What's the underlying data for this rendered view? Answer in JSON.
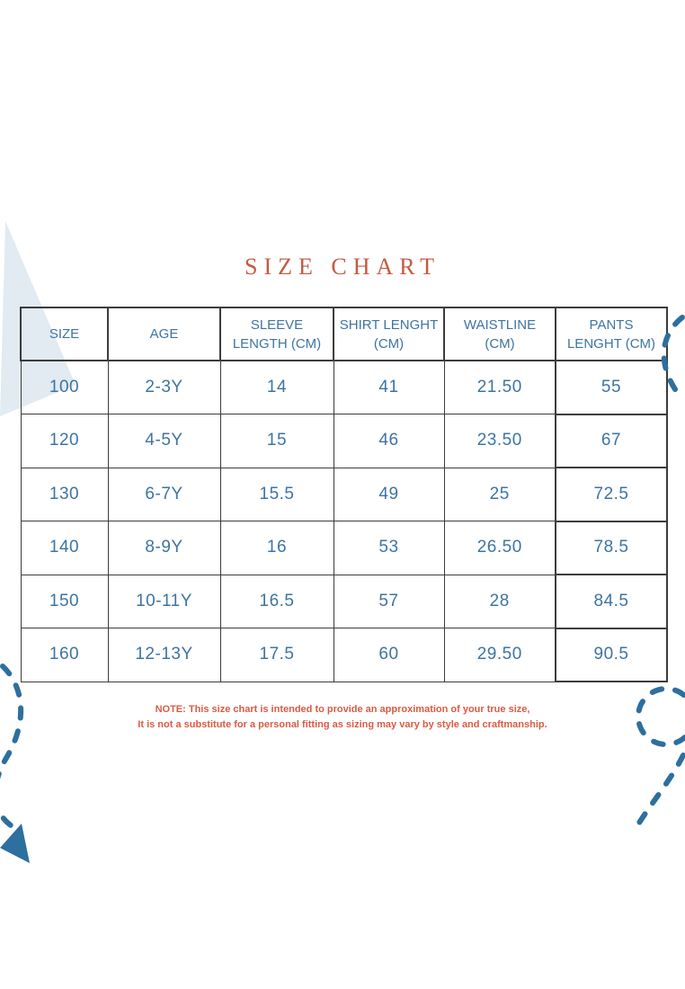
{
  "title": "SIZE CHART",
  "table": {
    "headers": [
      [
        "SIZE"
      ],
      [
        "AGE"
      ],
      [
        "SLEEVE",
        "LENGTH (CM)"
      ],
      [
        "SHIRT LENGHT",
        "(CM)"
      ],
      [
        "WAISTLINE",
        "(CM)"
      ],
      [
        "PANTS",
        "LENGHT (CM)"
      ]
    ],
    "rows": [
      [
        "100",
        "2-3Y",
        "14",
        "41",
        "21.50",
        "55"
      ],
      [
        "120",
        "4-5Y",
        "15",
        "46",
        "23.50",
        "67"
      ],
      [
        "130",
        "6-7Y",
        "15.5",
        "49",
        "25",
        "72.5"
      ],
      [
        "140",
        "8-9Y",
        "16",
        "53",
        "26.50",
        "78.5"
      ],
      [
        "150",
        "10-11Y",
        "16.5",
        "57",
        "28",
        "84.5"
      ],
      [
        "160",
        "12-13Y",
        "17.5",
        "60",
        "29.50",
        "90.5"
      ]
    ]
  },
  "note": {
    "line1": "NOTE: This size chart is intended to provide an approximation of your true size,",
    "line2": "It is not a substitute for a personal fitting as sizing may vary by style and craftmanship."
  },
  "decorations": {
    "top_left": "light-blue-triangle-wedge",
    "right_edge": "dashed-blue-arc",
    "bottom_right": "dashed-blue-loop-with-tail",
    "bottom_left": "dashed-blue-curve-with-arrowhead"
  },
  "colors": {
    "accent-red": "#c55a41",
    "note-red": "#d95b43",
    "table-text-blue": "#3d74a3",
    "dash-blue": "#2d6f9e",
    "triangle-light": "#e1ebf1",
    "border-dark": "#3c3c3c"
  }
}
